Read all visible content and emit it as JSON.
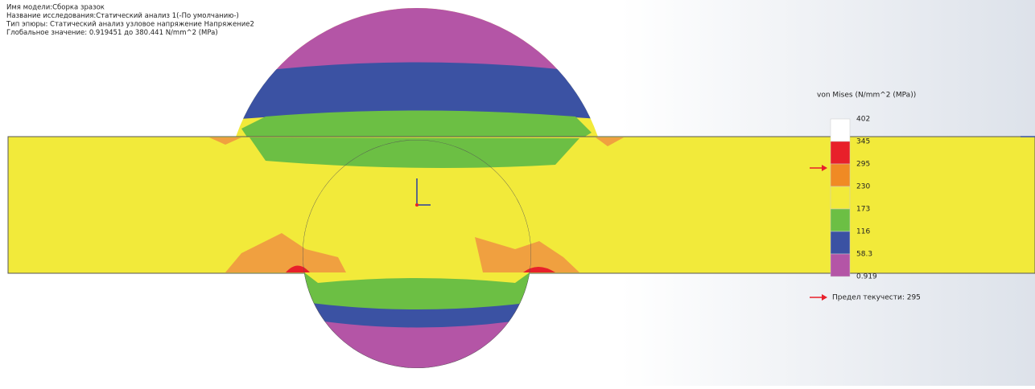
{
  "header": {
    "lines": [
      "Имя модели:Сборка зразок",
      "Название исследования:Статический анализ 1(-По умолчанию-)",
      "Тип эпюры: Статический анализ узловое напряжение Напряжение2",
      "Глобальное значение: 0.919451 до 380.441 N/mm^2 (MPa)"
    ]
  },
  "legend": {
    "title": "von Mises (N/mm^2 (MPa))",
    "levels": [
      402,
      345,
      295,
      230,
      173,
      116,
      58.3,
      0.919
    ],
    "colors": [
      "#ffffff",
      "#e8202a",
      "#f08a24",
      "#f2ea3a",
      "#6cbf44",
      "#3b52a3",
      "#b455a6"
    ],
    "yield_note": "Предел текучести: 295"
  }
}
